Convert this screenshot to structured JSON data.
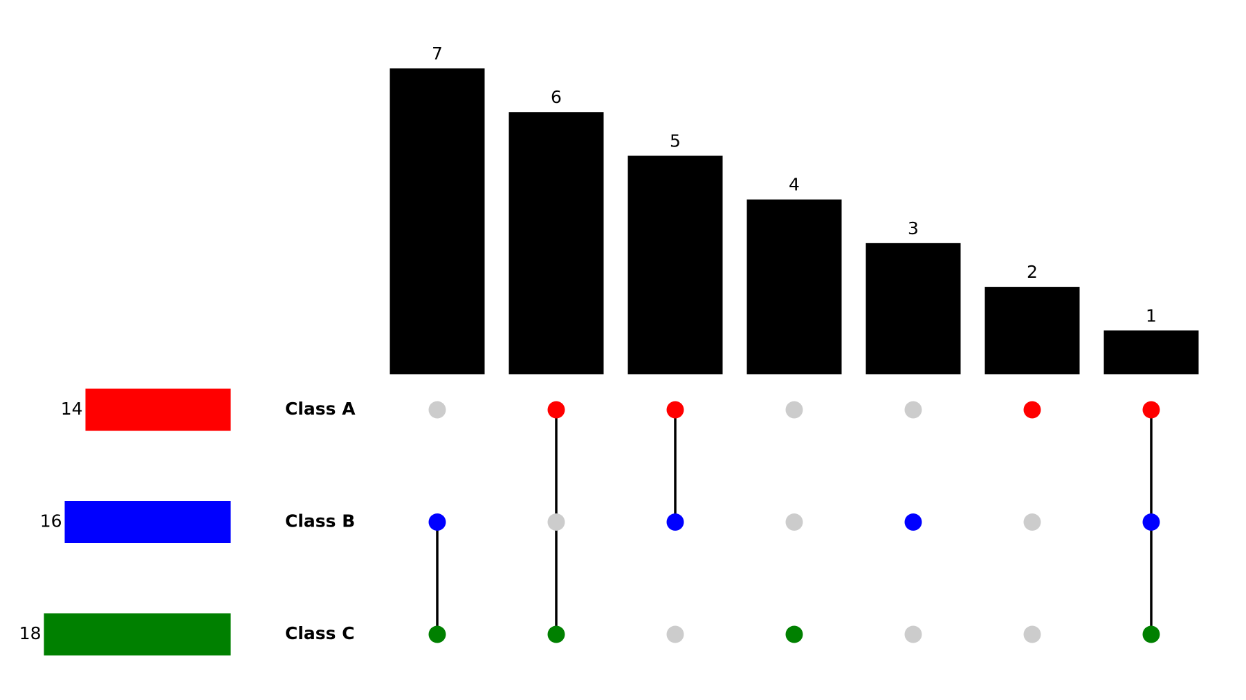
{
  "chart_data": {
    "type": "upset",
    "sets": [
      {
        "name": "Class A",
        "size": 14,
        "color": "#ff0000"
      },
      {
        "name": "Class B",
        "size": 16,
        "color": "#0000ff"
      },
      {
        "name": "Class C",
        "size": 18,
        "color": "#008000"
      }
    ],
    "intersections": [
      {
        "members": [
          1,
          2
        ],
        "size": 7
      },
      {
        "members": [
          0,
          2
        ],
        "size": 6
      },
      {
        "members": [
          0,
          1
        ],
        "size": 5
      },
      {
        "members": [
          2
        ],
        "size": 4
      },
      {
        "members": [
          1
        ],
        "size": 3
      },
      {
        "members": [
          0
        ],
        "size": 2
      },
      {
        "members": [
          0,
          1,
          2
        ],
        "size": 1
      }
    ],
    "bar_color": "#000000",
    "inactive_color": "#cccccc"
  }
}
